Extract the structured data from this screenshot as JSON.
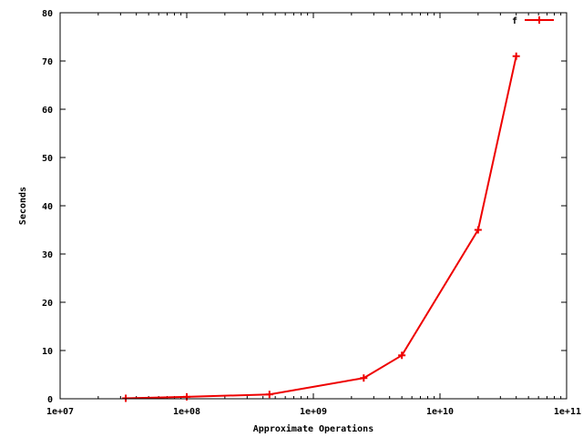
{
  "chart_data": {
    "type": "line",
    "title": "",
    "xlabel": "Approximate Operations",
    "ylabel": "Seconds",
    "x_scale": "log",
    "xlim": [
      10000000,
      100000000000
    ],
    "ylim": [
      0,
      80
    ],
    "x_ticks": [
      {
        "value": 10000000,
        "label": "1e+07"
      },
      {
        "value": 100000000,
        "label": "1e+08"
      },
      {
        "value": 1000000000,
        "label": "1e+09"
      },
      {
        "value": 10000000000,
        "label": "1e+10"
      },
      {
        "value": 100000000000,
        "label": "1e+11"
      }
    ],
    "y_ticks": [
      {
        "value": 0,
        "label": "0"
      },
      {
        "value": 10,
        "label": "10"
      },
      {
        "value": 20,
        "label": "20"
      },
      {
        "value": 30,
        "label": "30"
      },
      {
        "value": 40,
        "label": "40"
      },
      {
        "value": 50,
        "label": "50"
      },
      {
        "value": 60,
        "label": "60"
      },
      {
        "value": 70,
        "label": "70"
      },
      {
        "value": 80,
        "label": "80"
      }
    ],
    "grid": false,
    "legend_position": "top-right",
    "series": [
      {
        "name": "f",
        "color": "#ee0000",
        "marker": "plus",
        "points": [
          {
            "x": 33000000,
            "y": 0.1
          },
          {
            "x": 100000000,
            "y": 0.4
          },
          {
            "x": 450000000,
            "y": 0.9
          },
          {
            "x": 2500000000,
            "y": 4.3
          },
          {
            "x": 5000000000,
            "y": 9.0
          },
          {
            "x": 20000000000,
            "y": 35.0
          },
          {
            "x": 40000000000,
            "y": 71.0
          }
        ]
      }
    ]
  }
}
